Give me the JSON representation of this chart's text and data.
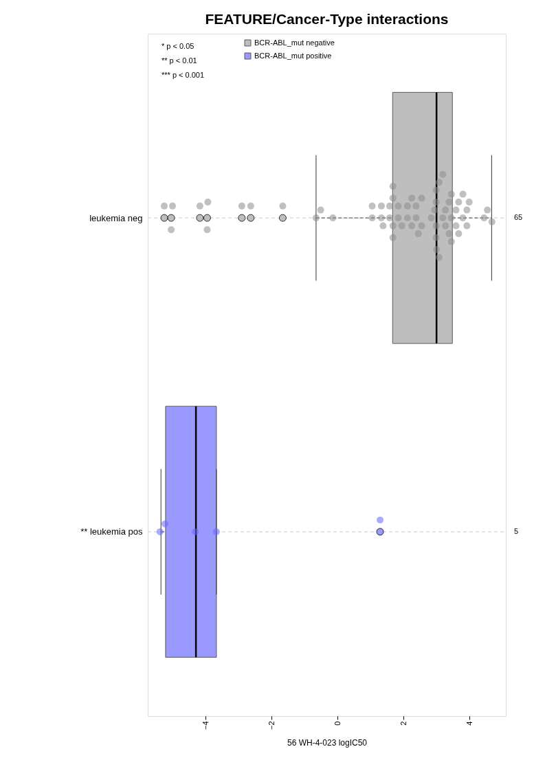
{
  "chart_data": {
    "type": "box",
    "orientation": "horizontal",
    "title": "FEATURE/Cancer-Type interactions",
    "xlabel": "56 WH-4-023 logIC50",
    "categories": [
      "leukemia neg",
      "** leukemia pos"
    ],
    "y2_categories": [
      "65",
      "5"
    ],
    "xlim": [
      -5.75,
      5.1
    ],
    "xticks": [
      -4,
      -2,
      0,
      2,
      4
    ],
    "grid": "y",
    "legend": "top left",
    "annotations": [
      "* p < 0.05",
      "** p < 0.01",
      "*** p < 0.001"
    ],
    "series": [
      {
        "name": "BCR-ABL_mut negative",
        "color": "#bebebe",
        "boxes": [
          {
            "low": -0.65,
            "q1": 1.67,
            "median": 3.0,
            "q3": 3.48,
            "high": 4.67,
            "outliers": [
              -5.25,
              -5.04,
              -4.17,
              -3.95,
              -2.9,
              -2.63,
              -1.66
            ]
          },
          null
        ]
      },
      {
        "name": "BCR-ABL_mut positive",
        "color": "#9999ff",
        "boxes": [
          null,
          {
            "low": -5.35,
            "q1": -5.21,
            "median": -4.29,
            "q3": -3.67,
            "high": -3.67,
            "outliers": [
              1.29
            ]
          }
        ]
      },
      {
        "type": "scatter",
        "color": "#8c8c8c",
        "x": [
          "leukemia neg",
          "leukemia neg",
          "leukemia neg",
          "leukemia neg",
          "leukemia neg",
          "leukemia neg",
          "leukemia neg",
          "leukemia neg",
          "leukemia neg",
          "leukemia neg",
          "leukemia neg",
          "leukemia neg",
          "leukemia neg",
          "leukemia neg",
          "leukemia neg",
          "leukemia neg",
          "leukemia neg",
          "leukemia neg",
          "leukemia neg",
          "leukemia neg",
          "leukemia neg",
          "leukemia neg",
          "leukemia neg",
          "leukemia neg",
          "leukemia neg",
          "leukemia neg",
          "leukemia neg",
          "leukemia neg",
          "leukemia neg",
          "leukemia neg",
          "leukemia neg",
          "leukemia neg",
          "leukemia neg",
          "leukemia neg",
          "leukemia neg",
          "leukemia neg",
          "leukemia neg",
          "leukemia neg",
          "leukemia neg",
          "leukemia neg",
          "leukemia neg",
          "leukemia neg",
          "leukemia neg",
          "leukemia neg",
          "leukemia neg",
          "leukemia neg",
          "leukemia neg",
          "leukemia neg",
          "leukemia neg",
          "leukemia neg",
          "leukemia neg",
          "leukemia neg",
          "leukemia neg",
          "leukemia neg",
          "leukemia neg",
          "leukemia neg",
          "leukemia neg",
          "leukemia neg",
          "leukemia neg",
          "leukemia neg",
          "leukemia neg",
          "leukemia neg",
          "leukemia neg",
          "leukemia neg",
          "leukemia neg"
        ],
        "values": [
          -5.25,
          -5.04,
          -5.0,
          -4.17,
          -3.95,
          -3.93,
          -2.9,
          -2.63,
          -1.66,
          -0.65,
          -0.51,
          -0.14,
          1.05,
          1.05,
          1.33,
          1.33,
          1.38,
          1.58,
          1.58,
          1.68,
          1.68,
          1.68,
          1.68,
          1.84,
          1.84,
          1.95,
          2.12,
          2.12,
          2.25,
          2.25,
          2.38,
          2.38,
          2.45,
          2.55,
          2.55,
          2.84,
          2.94,
          2.99,
          2.99,
          2.99,
          2.99,
          3.0,
          3.08,
          3.08,
          3.19,
          3.19,
          3.27,
          3.27,
          3.38,
          3.38,
          3.45,
          3.45,
          3.45,
          3.59,
          3.59,
          3.67,
          3.67,
          3.8,
          3.8,
          3.92,
          3.92,
          3.99,
          4.44,
          4.54,
          4.68
        ]
      },
      {
        "type": "scatter",
        "color": "#6666ff",
        "x": [
          "** leukemia pos",
          "** leukemia pos",
          "** leukemia pos",
          "** leukemia pos",
          "** leukemia pos"
        ],
        "values": [
          -5.38,
          -5.23,
          -4.31,
          -3.67,
          1.29
        ]
      }
    ]
  }
}
